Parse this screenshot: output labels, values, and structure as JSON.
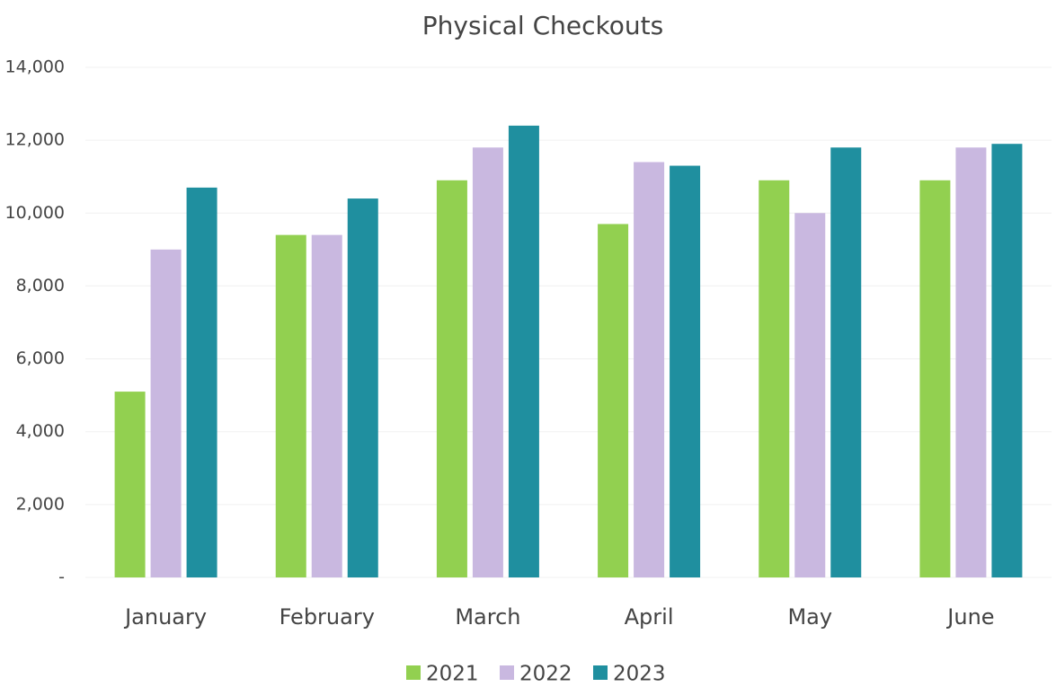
{
  "chart_data": {
    "type": "bar",
    "title": "Physical Checkouts",
    "categories": [
      "January",
      "February",
      "March",
      "April",
      "May",
      "June"
    ],
    "series": [
      {
        "name": "2021",
        "color": "#92d050",
        "values": [
          5100,
          9400,
          10900,
          9700,
          10900,
          10900
        ]
      },
      {
        "name": "2022",
        "color": "#c9b8e0",
        "values": [
          9000,
          9400,
          11800,
          11400,
          10000,
          11800
        ]
      },
      {
        "name": "2023",
        "color": "#1f8f9f",
        "values": [
          10700,
          10400,
          12400,
          11300,
          11800,
          11900
        ]
      }
    ],
    "ylim": [
      0,
      14000
    ],
    "yticks": [
      {
        "value": 0,
        "label": "-"
      },
      {
        "value": 2000,
        "label": "2,000"
      },
      {
        "value": 4000,
        "label": "4,000"
      },
      {
        "value": 6000,
        "label": "6,000"
      },
      {
        "value": 8000,
        "label": "8,000"
      },
      {
        "value": 10000,
        "label": "10,000"
      },
      {
        "value": 12000,
        "label": "12,000"
      },
      {
        "value": 14000,
        "label": "14,000"
      }
    ],
    "grid": true,
    "legend": "bottom"
  }
}
